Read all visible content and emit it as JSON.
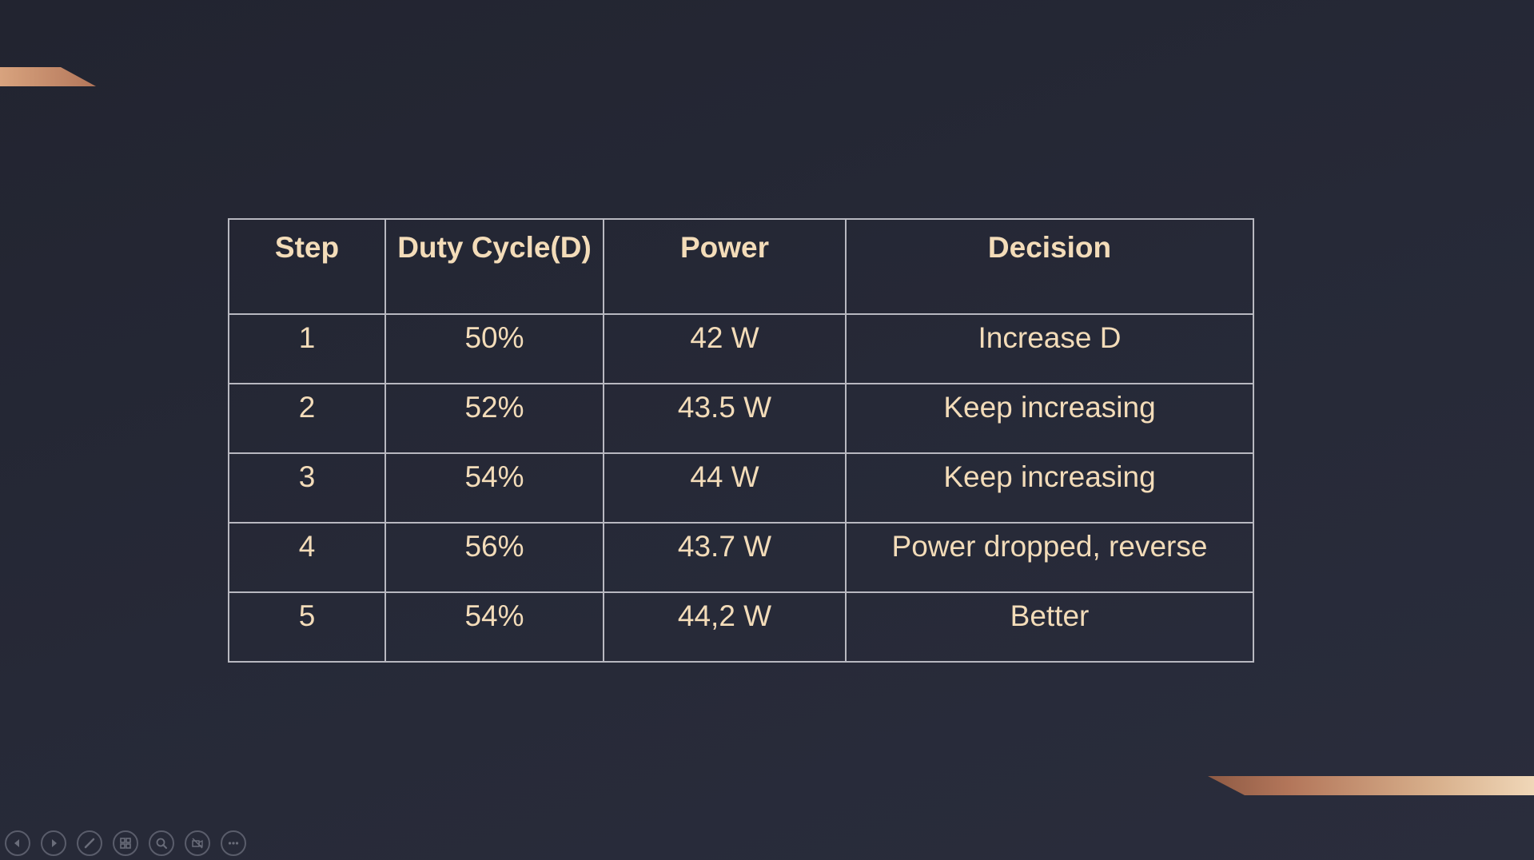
{
  "table": {
    "headers": [
      "Step",
      "Duty Cycle(D)",
      "Power",
      "Decision"
    ],
    "rows": [
      [
        "1",
        "50%",
        "42 W",
        "Increase D"
      ],
      [
        "2",
        "52%",
        "43.5 W",
        "Keep increasing"
      ],
      [
        "3",
        "54%",
        "44 W",
        "Keep increasing"
      ],
      [
        "4",
        "56%",
        "43.7 W",
        "Power dropped, reverse"
      ],
      [
        "5",
        "54%",
        "44,2 W",
        "Better"
      ]
    ]
  },
  "controls": [
    {
      "name": "previous-slide-icon"
    },
    {
      "name": "next-slide-icon"
    },
    {
      "name": "pen-icon"
    },
    {
      "name": "slide-sorter-icon"
    },
    {
      "name": "zoom-icon"
    },
    {
      "name": "camera-off-icon"
    },
    {
      "name": "more-options-icon"
    }
  ],
  "colors": {
    "background": "#262937",
    "text": "#f3dcb9",
    "border": "#b8b8c0",
    "accent": "#b3765a"
  }
}
